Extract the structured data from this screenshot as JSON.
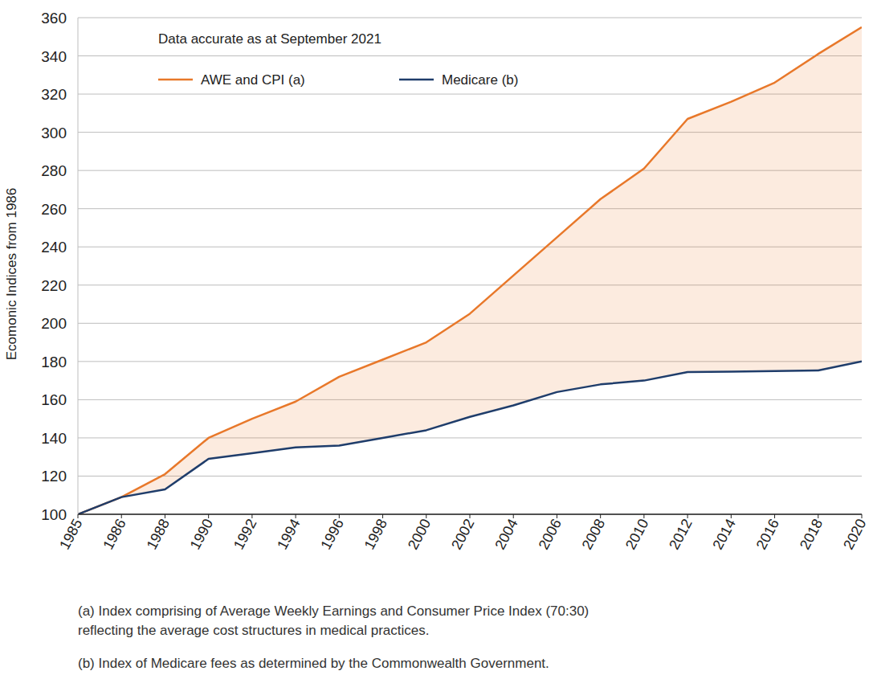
{
  "chart_data": {
    "type": "line",
    "annotation": "Data accurate as at September 2021",
    "ylabel": "Ecomonic Indices from 1986",
    "categories": [
      "1985",
      "1986",
      "1988",
      "1990",
      "1992",
      "1994",
      "1996",
      "1998",
      "2000",
      "2002",
      "2004",
      "2006",
      "2008",
      "2010",
      "2012",
      "2014",
      "2016",
      "2018",
      "2020"
    ],
    "series": [
      {
        "name": "AWE and CPI (a)",
        "color": "#e8782a",
        "values": [
          100,
          109,
          121,
          140,
          150,
          159,
          172,
          181,
          190,
          205,
          225,
          245,
          265,
          281,
          307,
          316,
          326,
          341,
          355
        ]
      },
      {
        "name": "Medicare (b)",
        "color": "#1f3d6b",
        "values": [
          100,
          109,
          113,
          129,
          132,
          135,
          136,
          140,
          144,
          151,
          157,
          164,
          168,
          170,
          174.5,
          174.7,
          175,
          175.3,
          180
        ]
      }
    ],
    "ylim": [
      100,
      360
    ],
    "yticks": [
      100,
      120,
      140,
      160,
      180,
      200,
      220,
      240,
      260,
      280,
      300,
      320,
      340,
      360
    ],
    "grid": true,
    "legend": "top-left",
    "footnotes": [
      [
        "(a) Index comprising of Average Weekly Earnings and Consumer Price Index (70:30)",
        "reflecting the average cost structures in medical practices."
      ],
      [
        "(b) Index of Medicare fees as determined by the Commonwealth Government."
      ]
    ]
  }
}
